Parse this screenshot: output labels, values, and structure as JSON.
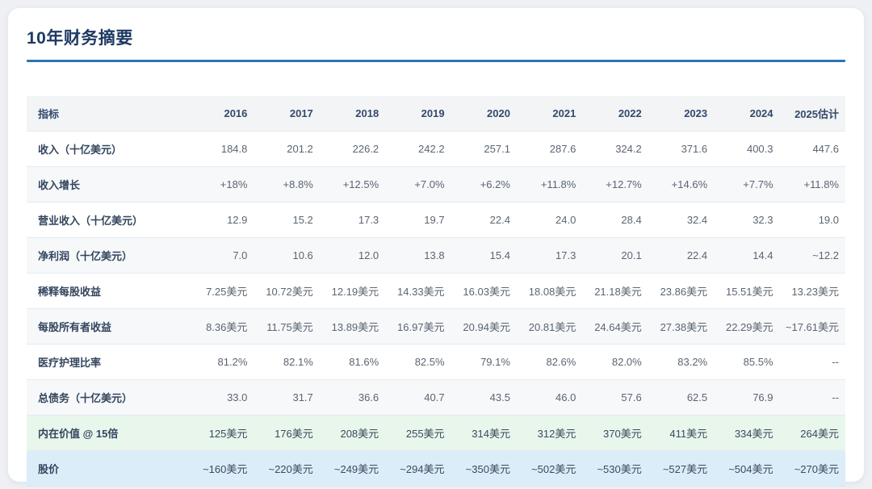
{
  "page": {
    "title": "10年财务摘要"
  },
  "colors": {
    "accent_underline": "#2e75b6",
    "title_text": "#1e3a63",
    "header_bg": "#f2f4f6",
    "zebra_bg": "#f6f8fa",
    "green_row_bg": "#e8f6ec",
    "blue_row_bg": "#dcedfa"
  },
  "table": {
    "header": {
      "indicator": "指标",
      "years": [
        "2016",
        "2017",
        "2018",
        "2019",
        "2020",
        "2021",
        "2022",
        "2023",
        "2024",
        "2025估计"
      ]
    },
    "rows": [
      {
        "label": "收入（十亿美元）",
        "values": [
          "184.8",
          "201.2",
          "226.2",
          "242.2",
          "257.1",
          "287.6",
          "324.2",
          "371.6",
          "400.3",
          "447.6"
        ]
      },
      {
        "label": "收入增长",
        "values": [
          "+18%",
          "+8.8%",
          "+12.5%",
          "+7.0%",
          "+6.2%",
          "+11.8%",
          "+12.7%",
          "+14.6%",
          "+7.7%",
          "+11.8%"
        ]
      },
      {
        "label": "营业收入（十亿美元）",
        "values": [
          "12.9",
          "15.2",
          "17.3",
          "19.7",
          "22.4",
          "24.0",
          "28.4",
          "32.4",
          "32.3",
          "19.0"
        ]
      },
      {
        "label": "净利润（十亿美元）",
        "values": [
          "7.0",
          "10.6",
          "12.0",
          "13.8",
          "15.4",
          "17.3",
          "20.1",
          "22.4",
          "14.4",
          "~12.2"
        ]
      },
      {
        "label": "稀释每股收益",
        "values": [
          "7.25美元",
          "10.72美元",
          "12.19美元",
          "14.33美元",
          "16.03美元",
          "18.08美元",
          "21.18美元",
          "23.86美元",
          "15.51美元",
          "13.23美元"
        ]
      },
      {
        "label": "每股所有者收益",
        "values": [
          "8.36美元",
          "11.75美元",
          "13.89美元",
          "16.97美元",
          "20.94美元",
          "20.81美元",
          "24.64美元",
          "27.38美元",
          "22.29美元",
          "~17.61美元"
        ]
      },
      {
        "label": "医疗护理比率",
        "values": [
          "81.2%",
          "82.1%",
          "81.6%",
          "82.5%",
          "79.1%",
          "82.6%",
          "82.0%",
          "83.2%",
          "85.5%",
          "--"
        ]
      },
      {
        "label": "总债务（十亿美元）",
        "values": [
          "33.0",
          "31.7",
          "36.6",
          "40.7",
          "43.5",
          "46.0",
          "57.6",
          "62.5",
          "76.9",
          "--"
        ]
      },
      {
        "label": "内在价值 @ 15倍",
        "highlight": "green",
        "values": [
          "125美元",
          "176美元",
          "208美元",
          "255美元",
          "314美元",
          "312美元",
          "370美元",
          "411美元",
          "334美元",
          "264美元"
        ]
      },
      {
        "label": "股价",
        "highlight": "blue",
        "values": [
          "~160美元",
          "~220美元",
          "~249美元",
          "~294美元",
          "~350美元",
          "~502美元",
          "~530美元",
          "~527美元",
          "~504美元",
          "~270美元"
        ]
      }
    ]
  }
}
